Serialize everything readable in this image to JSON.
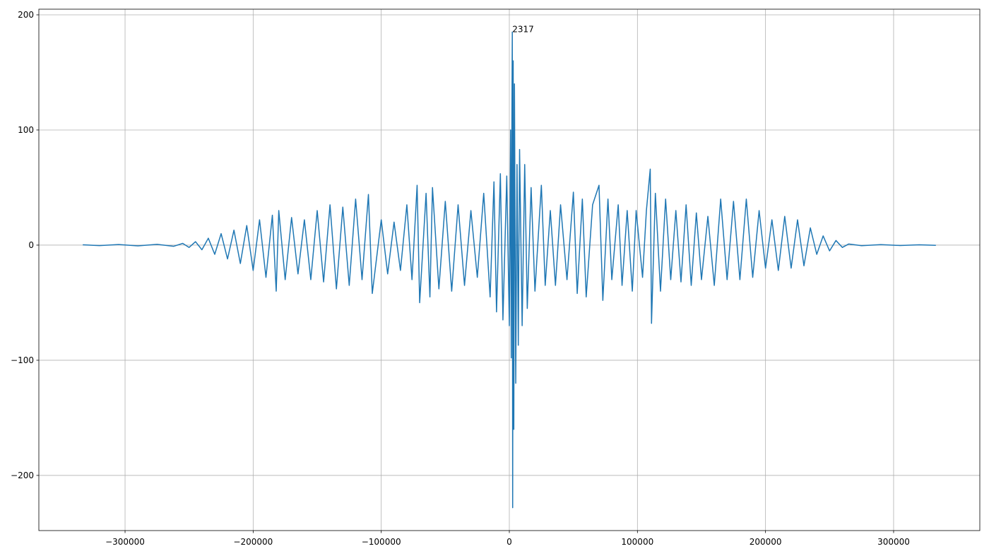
{
  "chart_data": {
    "type": "line",
    "color": "#1f77b4",
    "grid": true,
    "xlim": [
      -367300,
      367300
    ],
    "ylim": [
      -247.9,
      204.9
    ],
    "xticks": [
      {
        "value": -300000,
        "label": "−300000"
      },
      {
        "value": -200000,
        "label": "−200000"
      },
      {
        "value": -100000,
        "label": "−100000"
      },
      0,
      100000,
      200000,
      300000
    ],
    "yticks": [
      {
        "value": -200,
        "label": "−200"
      },
      {
        "value": -100,
        "label": "−100"
      },
      0,
      100,
      200
    ],
    "annotations": [
      {
        "text": "2317",
        "x": 2317,
        "y": 185
      }
    ],
    "x": [
      -333000,
      -320000,
      -305000,
      -290000,
      -275000,
      -262000,
      -255000,
      -250000,
      -245000,
      -240000,
      -235000,
      -230000,
      -225000,
      -220000,
      -215000,
      -210000,
      -205000,
      -200000,
      -195000,
      -190000,
      -185000,
      -182000,
      -180000,
      -175000,
      -170000,
      -165000,
      -160000,
      -155000,
      -150000,
      -145000,
      -140000,
      -135000,
      -130000,
      -125000,
      -120000,
      -115000,
      -110000,
      -107000,
      -100000,
      -95000,
      -90000,
      -85000,
      -80000,
      -76000,
      -72000,
      -70000,
      -65000,
      -62000,
      -60000,
      -55000,
      -50000,
      -45000,
      -40000,
      -35000,
      -30000,
      -25000,
      -20000,
      -15000,
      -12000,
      -10000,
      -7000,
      -5000,
      -2000,
      0,
      1000,
      1500,
      2000,
      2317,
      2600,
      3000,
      3500,
      4000,
      5000,
      6000,
      7000,
      8000,
      10000,
      12000,
      14000,
      17000,
      20000,
      25000,
      28000,
      32000,
      36000,
      40000,
      45000,
      50000,
      53000,
      57000,
      60000,
      65000,
      70000,
      73000,
      77000,
      80000,
      85000,
      88000,
      92000,
      96000,
      99000,
      104000,
      107000,
      110000,
      111000,
      114000,
      118000,
      122000,
      126000,
      130000,
      134000,
      138000,
      142000,
      146000,
      150000,
      155000,
      160000,
      165000,
      170000,
      175000,
      180000,
      185000,
      190000,
      195000,
      200000,
      205000,
      210000,
      215000,
      220000,
      225000,
      230000,
      235000,
      240000,
      245000,
      250000,
      255000,
      260000,
      265000,
      275000,
      290000,
      305000,
      320000,
      333000
    ],
    "values": [
      0.3,
      -0.4,
      0.5,
      -0.6,
      0.7,
      -1,
      1.5,
      -2,
      3,
      -4,
      6,
      -8,
      10,
      -12,
      13,
      -16,
      17,
      -22,
      22,
      -28,
      26,
      -40,
      30,
      -30,
      24,
      -25,
      22,
      -30,
      30,
      -32,
      35,
      -38,
      33,
      -35,
      40,
      -30,
      44,
      -42,
      22,
      -25,
      20,
      -22,
      35,
      -30,
      52,
      -50,
      45,
      -45,
      50,
      -38,
      38,
      -40,
      35,
      -35,
      30,
      -28,
      45,
      -45,
      55,
      -58,
      62,
      -65,
      60,
      -70,
      100,
      -98,
      110,
      185,
      -228,
      160,
      -160,
      140,
      -120,
      70,
      -87,
      83,
      -70,
      70,
      -55,
      50,
      -40,
      52,
      -35,
      30,
      -35,
      35,
      -30,
      46,
      -42,
      40,
      -45,
      35,
      52,
      -48,
      40,
      -30,
      35,
      -35,
      30,
      -40,
      30,
      -28,
      30,
      66,
      -68,
      45,
      -40,
      40,
      -30,
      30,
      -32,
      35,
      -35,
      28,
      -30,
      25,
      -35,
      40,
      -30,
      38,
      -30,
      40,
      -28,
      30,
      -20,
      22,
      -22,
      25,
      -20,
      22,
      -18,
      15,
      -8,
      8,
      -5,
      4,
      -2,
      1,
      -0.5,
      0.4,
      -0.3,
      0.3,
      -0.2
    ]
  }
}
